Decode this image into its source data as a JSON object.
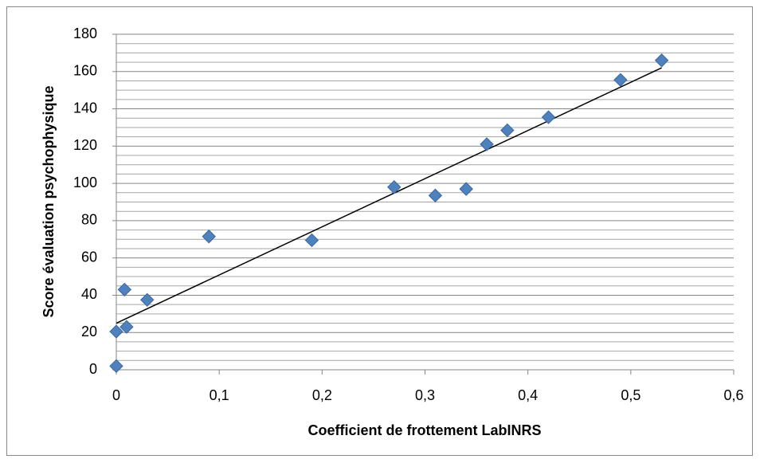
{
  "chart_data": {
    "type": "scatter",
    "x_label": "Coefficient de frottement LabINRS",
    "y_label": "Score évaluation psychophysique",
    "series": [
      {
        "color": "#4f81bd",
        "x": [
          0,
          0,
          0.01,
          0.008,
          0.03,
          0.09,
          0.19,
          0.27,
          0.31,
          0.34,
          0.36,
          0.38,
          0.42,
          0.49,
          0.53
        ],
        "values": [
          2,
          20.5,
          23,
          43,
          37.5,
          71.5,
          69.5,
          98,
          93.5,
          97,
          121,
          128.5,
          135.5,
          155.5,
          166
        ]
      }
    ],
    "trendline": {
      "color": "#000000",
      "x": [
        0,
        0.53
      ],
      "values": [
        25,
        162
      ]
    },
    "xlim": [
      0,
      0.6
    ],
    "xticks": [
      0,
      {
        "value": 0.1,
        "label": "0,1"
      },
      {
        "value": 0.2,
        "label": "0,2"
      },
      {
        "value": 0.3,
        "label": "0,3"
      },
      {
        "value": 0.4,
        "label": "0,4"
      },
      {
        "value": 0.5,
        "label": "0,5"
      },
      {
        "value": 0.6,
        "label": "0,6"
      }
    ],
    "ylim": [
      0,
      180
    ],
    "yticks": [
      0,
      20,
      40,
      60,
      80,
      100,
      120,
      140,
      160,
      180
    ],
    "grid": true,
    "minor_grid_step": 5
  }
}
